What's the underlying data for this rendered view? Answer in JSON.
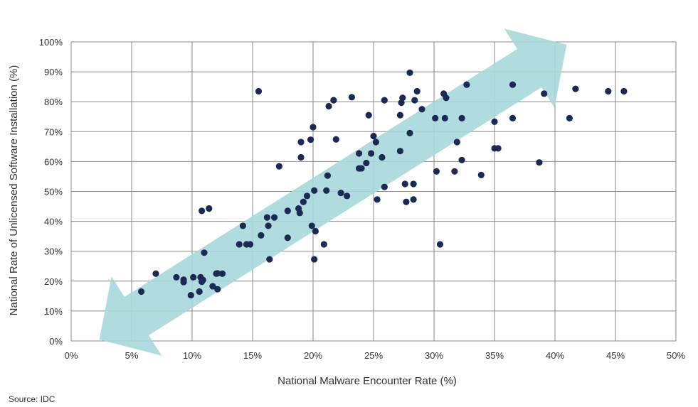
{
  "chart_data": {
    "type": "scatter",
    "title": "",
    "xlabel": "National Malware Encounter Rate (%)",
    "ylabel": "National Rate of Unlicensed Software Installation (%)",
    "xlim": [
      0,
      50
    ],
    "ylim": [
      0,
      100
    ],
    "x_ticks": [
      "0%",
      "5%",
      "10%",
      "15%",
      "20%",
      "25%",
      "30%",
      "35%",
      "40%",
      "45%",
      "50%"
    ],
    "y_ticks": [
      "0%",
      "10%",
      "20%",
      "30%",
      "40%",
      "50%",
      "60%",
      "70%",
      "80%",
      "90%",
      "100%"
    ],
    "grid": true,
    "trend_arrow": {
      "color": "#a8d8dc",
      "direction": "double-headed diagonal"
    },
    "point_color": "#1a2a55",
    "points": [
      [
        5.8,
        16.5
      ],
      [
        7.0,
        22.5
      ],
      [
        8.7,
        21.3
      ],
      [
        9.3,
        20.5
      ],
      [
        9.3,
        19.7
      ],
      [
        9.9,
        15.3
      ],
      [
        10.1,
        21.3
      ],
      [
        10.6,
        16.5
      ],
      [
        10.7,
        21.3
      ],
      [
        10.8,
        19.8
      ],
      [
        10.8,
        43.5
      ],
      [
        10.9,
        20.4
      ],
      [
        11.0,
        29.5
      ],
      [
        11.4,
        44.3
      ],
      [
        11.7,
        18.3
      ],
      [
        12.0,
        22.5
      ],
      [
        12.1,
        22.6
      ],
      [
        12.1,
        17.3
      ],
      [
        12.5,
        22.5
      ],
      [
        13.9,
        32.3
      ],
      [
        14.2,
        38.5
      ],
      [
        14.5,
        32.3
      ],
      [
        14.8,
        32.3
      ],
      [
        15.5,
        83.5
      ],
      [
        15.7,
        35.3
      ],
      [
        16.2,
        41.3
      ],
      [
        16.3,
        38.5
      ],
      [
        16.4,
        27.3
      ],
      [
        16.8,
        41.3
      ],
      [
        17.2,
        58.4
      ],
      [
        17.9,
        34.5
      ],
      [
        17.9,
        43.5
      ],
      [
        18.8,
        44.3
      ],
      [
        18.9,
        42.8
      ],
      [
        19.0,
        66.5
      ],
      [
        19.0,
        61.4
      ],
      [
        19.2,
        46.5
      ],
      [
        19.5,
        48.5
      ],
      [
        19.8,
        67.3
      ],
      [
        19.9,
        38.5
      ],
      [
        20.0,
        71.5
      ],
      [
        20.1,
        27.3
      ],
      [
        20.1,
        50.3
      ],
      [
        20.2,
        36.7
      ],
      [
        20.9,
        32.3
      ],
      [
        21.1,
        50.3
      ],
      [
        21.2,
        55.3
      ],
      [
        21.3,
        78.5
      ],
      [
        21.7,
        80.5
      ],
      [
        21.9,
        67.4
      ],
      [
        22.3,
        49.5
      ],
      [
        22.8,
        48.5
      ],
      [
        23.2,
        81.5
      ],
      [
        23.8,
        62.7
      ],
      [
        23.8,
        57.7
      ],
      [
        24.0,
        57.7
      ],
      [
        24.4,
        59.5
      ],
      [
        24.6,
        75.5
      ],
      [
        24.8,
        62.7
      ],
      [
        25.0,
        68.5
      ],
      [
        25.2,
        66.5
      ],
      [
        25.3,
        47.3
      ],
      [
        25.7,
        61.4
      ],
      [
        25.9,
        51.5
      ],
      [
        25.9,
        80.5
      ],
      [
        27.2,
        63.5
      ],
      [
        27.2,
        75.5
      ],
      [
        27.3,
        79.7
      ],
      [
        27.4,
        81.3
      ],
      [
        27.6,
        52.5
      ],
      [
        27.7,
        46.5
      ],
      [
        28.0,
        69.5
      ],
      [
        28.0,
        89.7
      ],
      [
        28.3,
        52.5
      ],
      [
        28.3,
        47.3
      ],
      [
        28.4,
        80.5
      ],
      [
        28.6,
        83.5
      ],
      [
        29.0,
        77.5
      ],
      [
        30.1,
        74.5
      ],
      [
        30.2,
        56.7
      ],
      [
        30.5,
        32.3
      ],
      [
        30.8,
        82.7
      ],
      [
        30.9,
        74.5
      ],
      [
        31.0,
        81.3
      ],
      [
        31.7,
        56.7
      ],
      [
        31.9,
        66.5
      ],
      [
        32.3,
        74.5
      ],
      [
        32.3,
        60.5
      ],
      [
        32.7,
        85.7
      ],
      [
        33.9,
        55.5
      ],
      [
        35.0,
        73.3
      ],
      [
        35.0,
        64.4
      ],
      [
        35.3,
        64.4
      ],
      [
        36.5,
        85.7
      ],
      [
        36.5,
        74.5
      ],
      [
        38.7,
        59.7
      ],
      [
        39.1,
        82.7
      ],
      [
        41.2,
        74.5
      ],
      [
        41.7,
        84.3
      ],
      [
        44.4,
        83.5
      ],
      [
        45.7,
        83.5
      ]
    ]
  },
  "source_text": "Source:  IDC"
}
